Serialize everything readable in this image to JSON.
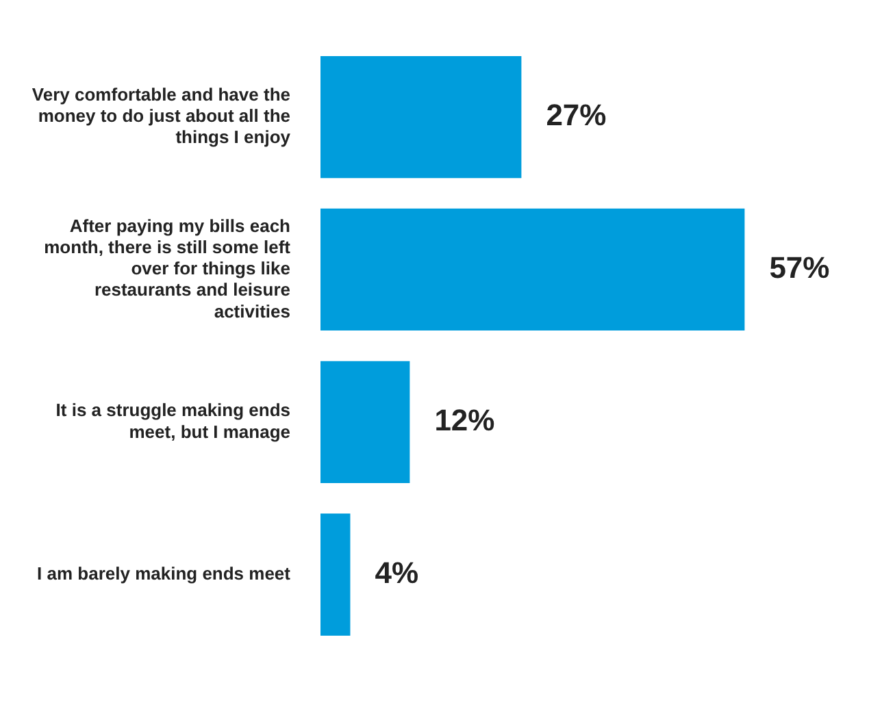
{
  "chart_data": {
    "type": "bar",
    "orientation": "horizontal",
    "categories": [
      "Very comfortable and have the money to do just about all the things I enjoy",
      "After paying my bills each month, there is still some left over for things like restaurants and leisure activities",
      "It is a struggle making ends meet, but I manage",
      "I am barely making ends meet"
    ],
    "values": [
      27,
      57,
      12,
      4
    ],
    "value_labels": [
      "27%",
      "57%",
      "12%",
      "4%"
    ],
    "color": "#009ddc",
    "legend": false
  }
}
